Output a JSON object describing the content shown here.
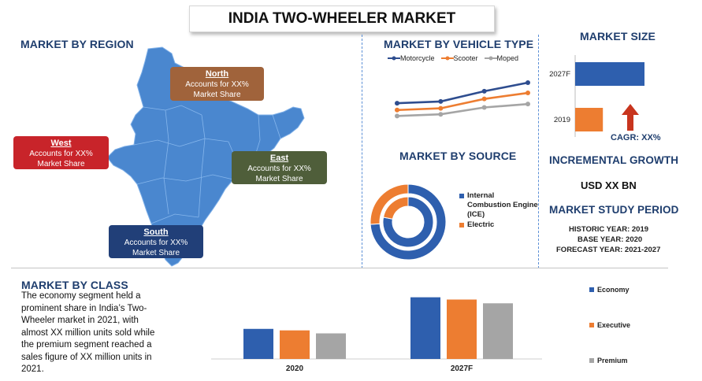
{
  "title": "INDIA TWO-WHEELER MARKET",
  "region": {
    "heading": "MARKET BY REGION",
    "callouts": [
      {
        "key": "north",
        "title": "North",
        "text1": "Accounts for XX%",
        "text2": "Market Share",
        "color": "#a0633b"
      },
      {
        "key": "west",
        "title": "West",
        "text1": "Accounts for XX%",
        "text2": "Market Share",
        "color": "#c8242a"
      },
      {
        "key": "east",
        "title": "East",
        "text1": "Accounts for XX%",
        "text2": "Market Share",
        "color": "#4f5e3a"
      },
      {
        "key": "south",
        "title": "South",
        "text1": "Accounts for XX%",
        "text2": "Market Share",
        "color": "#213f78"
      }
    ],
    "map_color": "#4a87cf"
  },
  "vehicle_type": {
    "heading": "MARKET BY VEHICLE TYPE",
    "chart_data": {
      "type": "line",
      "x": [
        1,
        2,
        3,
        4
      ],
      "series": [
        {
          "name": "Motorcycle",
          "values": [
            3.4,
            3.6,
            4.8,
            5.8
          ],
          "color": "#2e4d8f"
        },
        {
          "name": "Scooter",
          "values": [
            2.6,
            2.8,
            3.9,
            4.6
          ],
          "color": "#ed7d31"
        },
        {
          "name": "Moped",
          "values": [
            1.9,
            2.1,
            2.9,
            3.3
          ],
          "color": "#a5a5a5"
        }
      ],
      "ylim": [
        0,
        7
      ],
      "legend": "top"
    }
  },
  "source": {
    "heading": "MARKET BY SOURCE",
    "chart_data": {
      "type": "pie",
      "series": [
        {
          "name": "Internal Combustion Engine (ICE)",
          "rings": [
            0.74,
            0.78
          ],
          "color": "#2e5fae"
        },
        {
          "name": "Electric",
          "rings": [
            0.26,
            0.22
          ],
          "color": "#ed7d31"
        }
      ]
    },
    "legend_lines": {
      "ice1": "Internal",
      "ice2": "Combustion Engine",
      "ice3": "(ICE)",
      "electric": "Electric"
    }
  },
  "market_size": {
    "heading": "MARKET SIZE",
    "chart_data": {
      "type": "bar",
      "categories": [
        "2027F",
        "2019"
      ],
      "values": [
        100,
        40
      ],
      "colors": [
        "#2e5fae",
        "#ed7d31"
      ]
    },
    "cagr": "CAGR: XX%",
    "arrow_color": "#c8351e"
  },
  "incremental": {
    "heading": "INCREMENTAL GROWTH",
    "value": "USD XX BN"
  },
  "study_period": {
    "heading": "MARKET STUDY PERIOD",
    "historic": "HISTORIC YEAR: 2019",
    "base": "BASE YEAR: 2020",
    "forecast": "FORECAST YEAR: 2021-2027"
  },
  "class": {
    "heading": "MARKET BY CLASS",
    "paragraph_lines": [
      "The economy segment held a",
      "prominent share in India’s Two-",
      "Wheeler market in 2021, with",
      "almost XX million units sold while",
      "the premium segment reached a",
      "sales figure of XX million units in",
      "2021."
    ],
    "chart_data": {
      "type": "bar",
      "categories": [
        "2020",
        "2027F"
      ],
      "series": [
        {
          "name": "Economy",
          "values": [
            40,
            82
          ],
          "color": "#2e5fae"
        },
        {
          "name": "Executive",
          "values": [
            38,
            79
          ],
          "color": "#ed7d31"
        },
        {
          "name": "Premium",
          "values": [
            34,
            74
          ],
          "color": "#a5a5a5"
        }
      ],
      "ylim": [
        0,
        90
      ]
    }
  }
}
